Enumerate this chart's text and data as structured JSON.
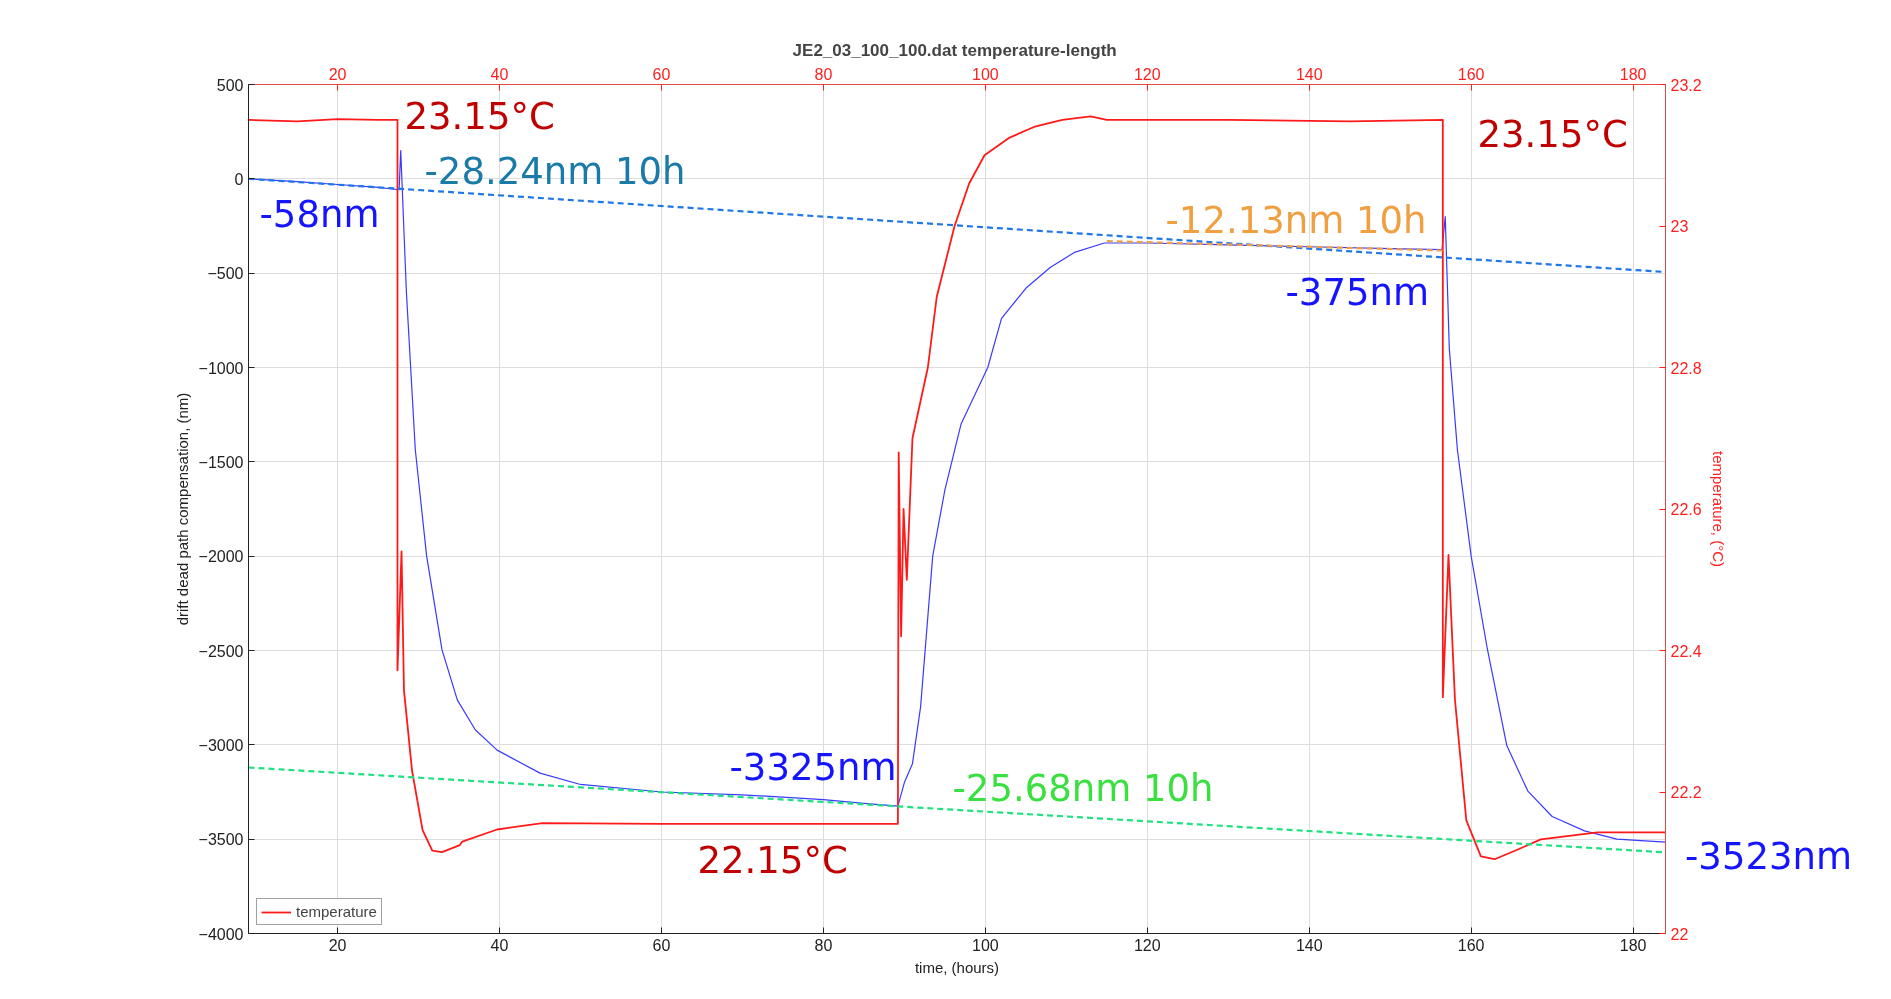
{
  "chart_data": {
    "type": "line",
    "title": "JE2_03_100_100.dat  temperature-length",
    "xlabel": "time, (hours)",
    "ylabel": "drift dead path compensation, (nm)",
    "y2label": "temperature, (°C)",
    "xlim": [
      9,
      184
    ],
    "xticks": [
      20,
      40,
      60,
      80,
      100,
      120,
      140,
      160,
      180
    ],
    "x2lim": [
      9,
      184
    ],
    "x2ticks": [
      20,
      40,
      60,
      80,
      100,
      120,
      140,
      160,
      180
    ],
    "ylim": [
      -4000,
      500
    ],
    "yticks": [
      -4000,
      -3500,
      -3000,
      -2500,
      -2000,
      -1500,
      -1000,
      -500,
      0,
      500
    ],
    "y2lim": [
      22,
      23.2
    ],
    "y2ticks": [
      22,
      22.2,
      22.4,
      22.6,
      22.8,
      23,
      23.2
    ],
    "grid": true,
    "legend": "bottom left",
    "series": [
      {
        "color": "#3a3aff",
        "line_style": "solid",
        "x": [
          9,
          15,
          20,
          25,
          27.6,
          27.8,
          28.5,
          29.6,
          31,
          32.9,
          34.8,
          37,
          39.7,
          45,
          50,
          60,
          70,
          80,
          85,
          89.2,
          90,
          91,
          92,
          93.5,
          95,
          97,
          100.3,
          102,
          105,
          108,
          111,
          114.7,
          120,
          130,
          140,
          150,
          156.4,
          156.8,
          157.3,
          158.3,
          160,
          162,
          164.4,
          167,
          170,
          174,
          178,
          184
        ],
        "values": [
          0,
          -15,
          -30,
          -45,
          -58,
          150,
          -600,
          -1436,
          -2000,
          -2497,
          -2763,
          -2920,
          -3028,
          -3150,
          -3210,
          -3250,
          -3265,
          -3290,
          -3310,
          -3325,
          -3200,
          -3100,
          -2800,
          -2000,
          -1650,
          -1300,
          -1000,
          -740,
          -580,
          -470,
          -390,
          -340,
          -340,
          -350,
          -360,
          -370,
          -375,
          -200,
          -900,
          -1436,
          -2000,
          -2492,
          -3004,
          -3245,
          -3380,
          -3456,
          -3500,
          -3516
        ]
      },
      {
        "name": "temperature",
        "color": "#ff1a1a",
        "axis": "y2",
        "line_style": "solid",
        "x": [
          9,
          15,
          20,
          25,
          27.4,
          27.4,
          27.9,
          28.2,
          29.2,
          30.5,
          31.7,
          32.9,
          35.1,
          35.4,
          39.7,
          45.3,
          60,
          75,
          89.2,
          89.3,
          89.6,
          89.9,
          90.3,
          91,
          92.9,
          94,
          96.2,
          98,
          99.9,
          103,
          106,
          109.5,
          113,
          115,
          130,
          145,
          156.5,
          156.5,
          157.2,
          158,
          159.4,
          161.2,
          162.9,
          165.4,
          168.6,
          175.6,
          184
        ],
        "values": [
          23.15,
          23.148,
          23.151,
          23.15,
          23.15,
          22.372,
          22.54,
          22.344,
          22.23,
          22.146,
          22.117,
          22.115,
          22.125,
          22.13,
          22.147,
          22.156,
          22.155,
          22.155,
          22.155,
          22.68,
          22.42,
          22.6,
          22.5,
          22.7,
          22.8,
          22.9,
          23.0,
          23.06,
          23.1,
          23.125,
          23.14,
          23.15,
          23.155,
          23.15,
          23.15,
          23.148,
          23.15,
          22.334,
          22.535,
          22.33,
          22.16,
          22.109,
          22.105,
          22.117,
          22.133,
          22.143,
          22.143
        ]
      },
      {
        "color": "#1f77e8",
        "line_style": "dashed",
        "x": [
          9,
          184
        ],
        "values": [
          0,
          -494
        ]
      },
      {
        "color": "#20e080",
        "line_style": "dashed",
        "x": [
          9,
          184
        ],
        "values": [
          -3120,
          -3570
        ]
      },
      {
        "color": "#f0a040",
        "line_style": "dashed",
        "x": [
          115,
          156.5
        ],
        "values": [
          -330,
          -380
        ]
      }
    ],
    "annotations": [
      "23.15°C",
      "-28.24nm 10h",
      "-58nm",
      "23.15°C",
      "-12.13nm 10h",
      "-375nm",
      "-3325nm",
      "-25.68nm 10h",
      "22.15°C",
      "-3523nm"
    ]
  }
}
